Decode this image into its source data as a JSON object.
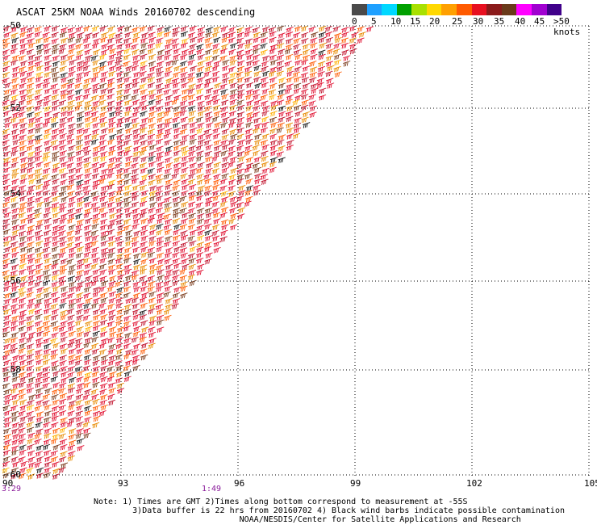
{
  "title": "ASCAT 25KM NOAA Winds 20160702 descending",
  "scale": {
    "colors": [
      "#4a4a4a",
      "#1ea0ff",
      "#00d8ff",
      "#00a000",
      "#a8e000",
      "#ffd800",
      "#ffa000",
      "#ff5a00",
      "#e81020",
      "#8a1a1a",
      "#6a3a1a",
      "#ff00ff",
      "#a000d0",
      "#40008a"
    ],
    "labels": [
      "0",
      "5",
      "10",
      "15",
      "20",
      "25",
      "30",
      "35",
      "40",
      "45",
      ">50 knots"
    ]
  },
  "lat_labels": [
    "-50",
    "-52",
    "-54",
    "-56",
    "-58",
    "-60"
  ],
  "lon_labels": [
    "90",
    "93",
    "96",
    "99",
    "102",
    "105"
  ],
  "time_labels": [
    "3:29",
    "1:49"
  ],
  "notes": [
    "Note: 1) Times are GMT 2)Times along bottom correspond to measurement at -55S",
    "        3)Data buffer is 22 hrs from 20160702 4) Black wind barbs indicate possible contamination",
    "                              NOAA/NESDIS/Center for Satellite Applications and Research"
  ],
  "barb_colors": [
    "#e01030",
    "#ff5a00",
    "#e88a00",
    "#c0102a",
    "#7a3a1a",
    "#1a1a1a",
    "#ffb000"
  ]
}
